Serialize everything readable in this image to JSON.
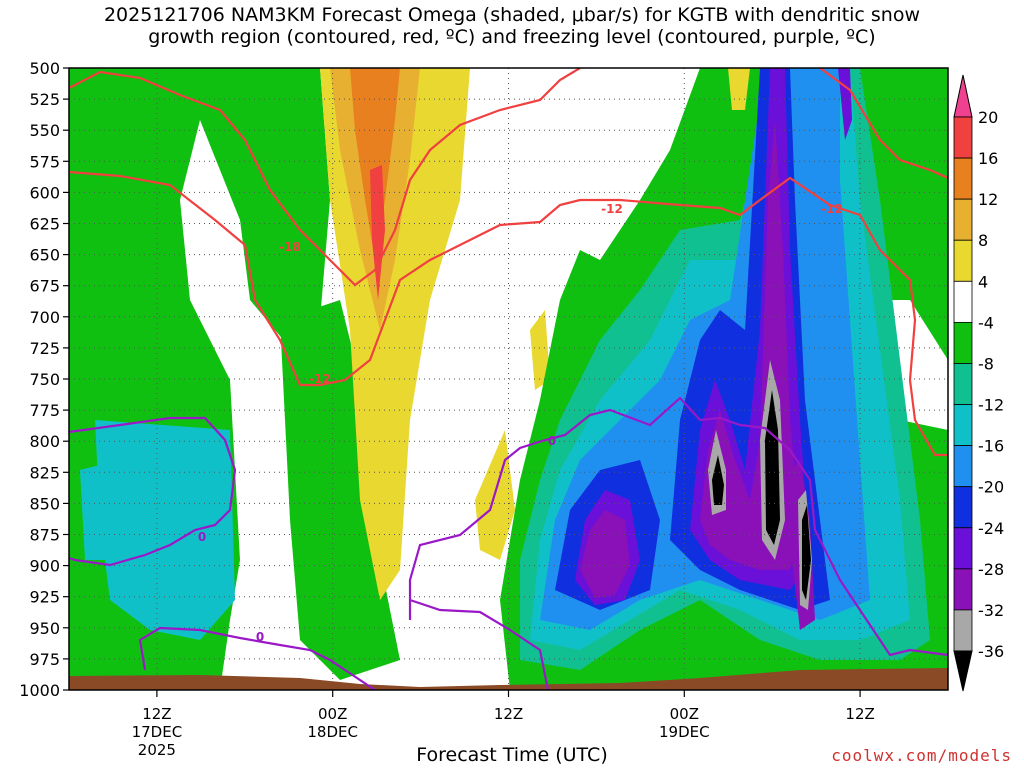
{
  "title": {
    "line1": "2025121706 NAM3KM Forecast Omega (shaded, μbar/s) for KGTB with dendritic snow",
    "line2": "growth region (contoured, red, ºC) and freezing level (contoured, purple, ºC)"
  },
  "credit": "coolwx.com/models",
  "colors": {
    "ground": "#8b4a26",
    "dendritic_contour": "#f04040",
    "freezing_contour": "#9a18c8",
    "credit": "#d03030"
  },
  "chart_data": {
    "type": "heatmap",
    "title": "2025121706 NAM3KM Forecast Omega (shaded, μbar/s) for KGTB with dendritic snow growth region (contoured, red, ºC) and freezing level (contoured, purple, ºC)",
    "xlabel": "Forecast Time (UTC)",
    "ylabel": "",
    "xlim_hours": [
      0,
      60
    ],
    "ylim_hpa": [
      1000,
      500
    ],
    "y_inverted": true,
    "grid": true,
    "y_ticks": [
      500,
      525,
      550,
      575,
      600,
      625,
      650,
      675,
      700,
      725,
      750,
      775,
      800,
      825,
      850,
      875,
      900,
      925,
      950,
      975,
      1000
    ],
    "x_ticks": [
      {
        "hour": 6,
        "label": "12Z",
        "date": "17DEC",
        "year": "2025"
      },
      {
        "hour": 18,
        "label": "00Z",
        "date": "18DEC",
        "year": ""
      },
      {
        "hour": 30,
        "label": "12Z",
        "date": "",
        "year": ""
      },
      {
        "hour": 42,
        "label": "00Z",
        "date": "19DEC",
        "year": ""
      },
      {
        "hour": 54,
        "label": "12Z",
        "date": "",
        "year": ""
      }
    ],
    "colorbar": {
      "levels": [
        -36,
        -32,
        -28,
        -24,
        -20,
        -16,
        -12,
        -8,
        -4,
        4,
        8,
        12,
        16,
        20
      ],
      "labels": [
        "20",
        "16",
        "12",
        "8",
        "4",
        "-4",
        "-8",
        "-12",
        "-16",
        "-20",
        "-24",
        "-28",
        "-32",
        "-36"
      ],
      "colors": [
        "#000000",
        "#a8a8a8",
        "#8a10b8",
        "#6a10d8",
        "#1030e0",
        "#2090f0",
        "#10c0c8",
        "#10c090",
        "#10c010",
        "#ffffff",
        "#e8d830",
        "#e8b030",
        "#e88020",
        "#f04040",
        "#f04090"
      ]
    },
    "contours": [
      {
        "name": "-12",
        "kind": "dendritic",
        "labels": [
          "-12",
          "-12",
          "-12"
        ]
      },
      {
        "name": "-18",
        "kind": "dendritic",
        "labels": [
          "-18"
        ]
      },
      {
        "name": "0",
        "kind": "freezing",
        "labels": [
          "0",
          "0",
          "0"
        ]
      }
    ]
  }
}
